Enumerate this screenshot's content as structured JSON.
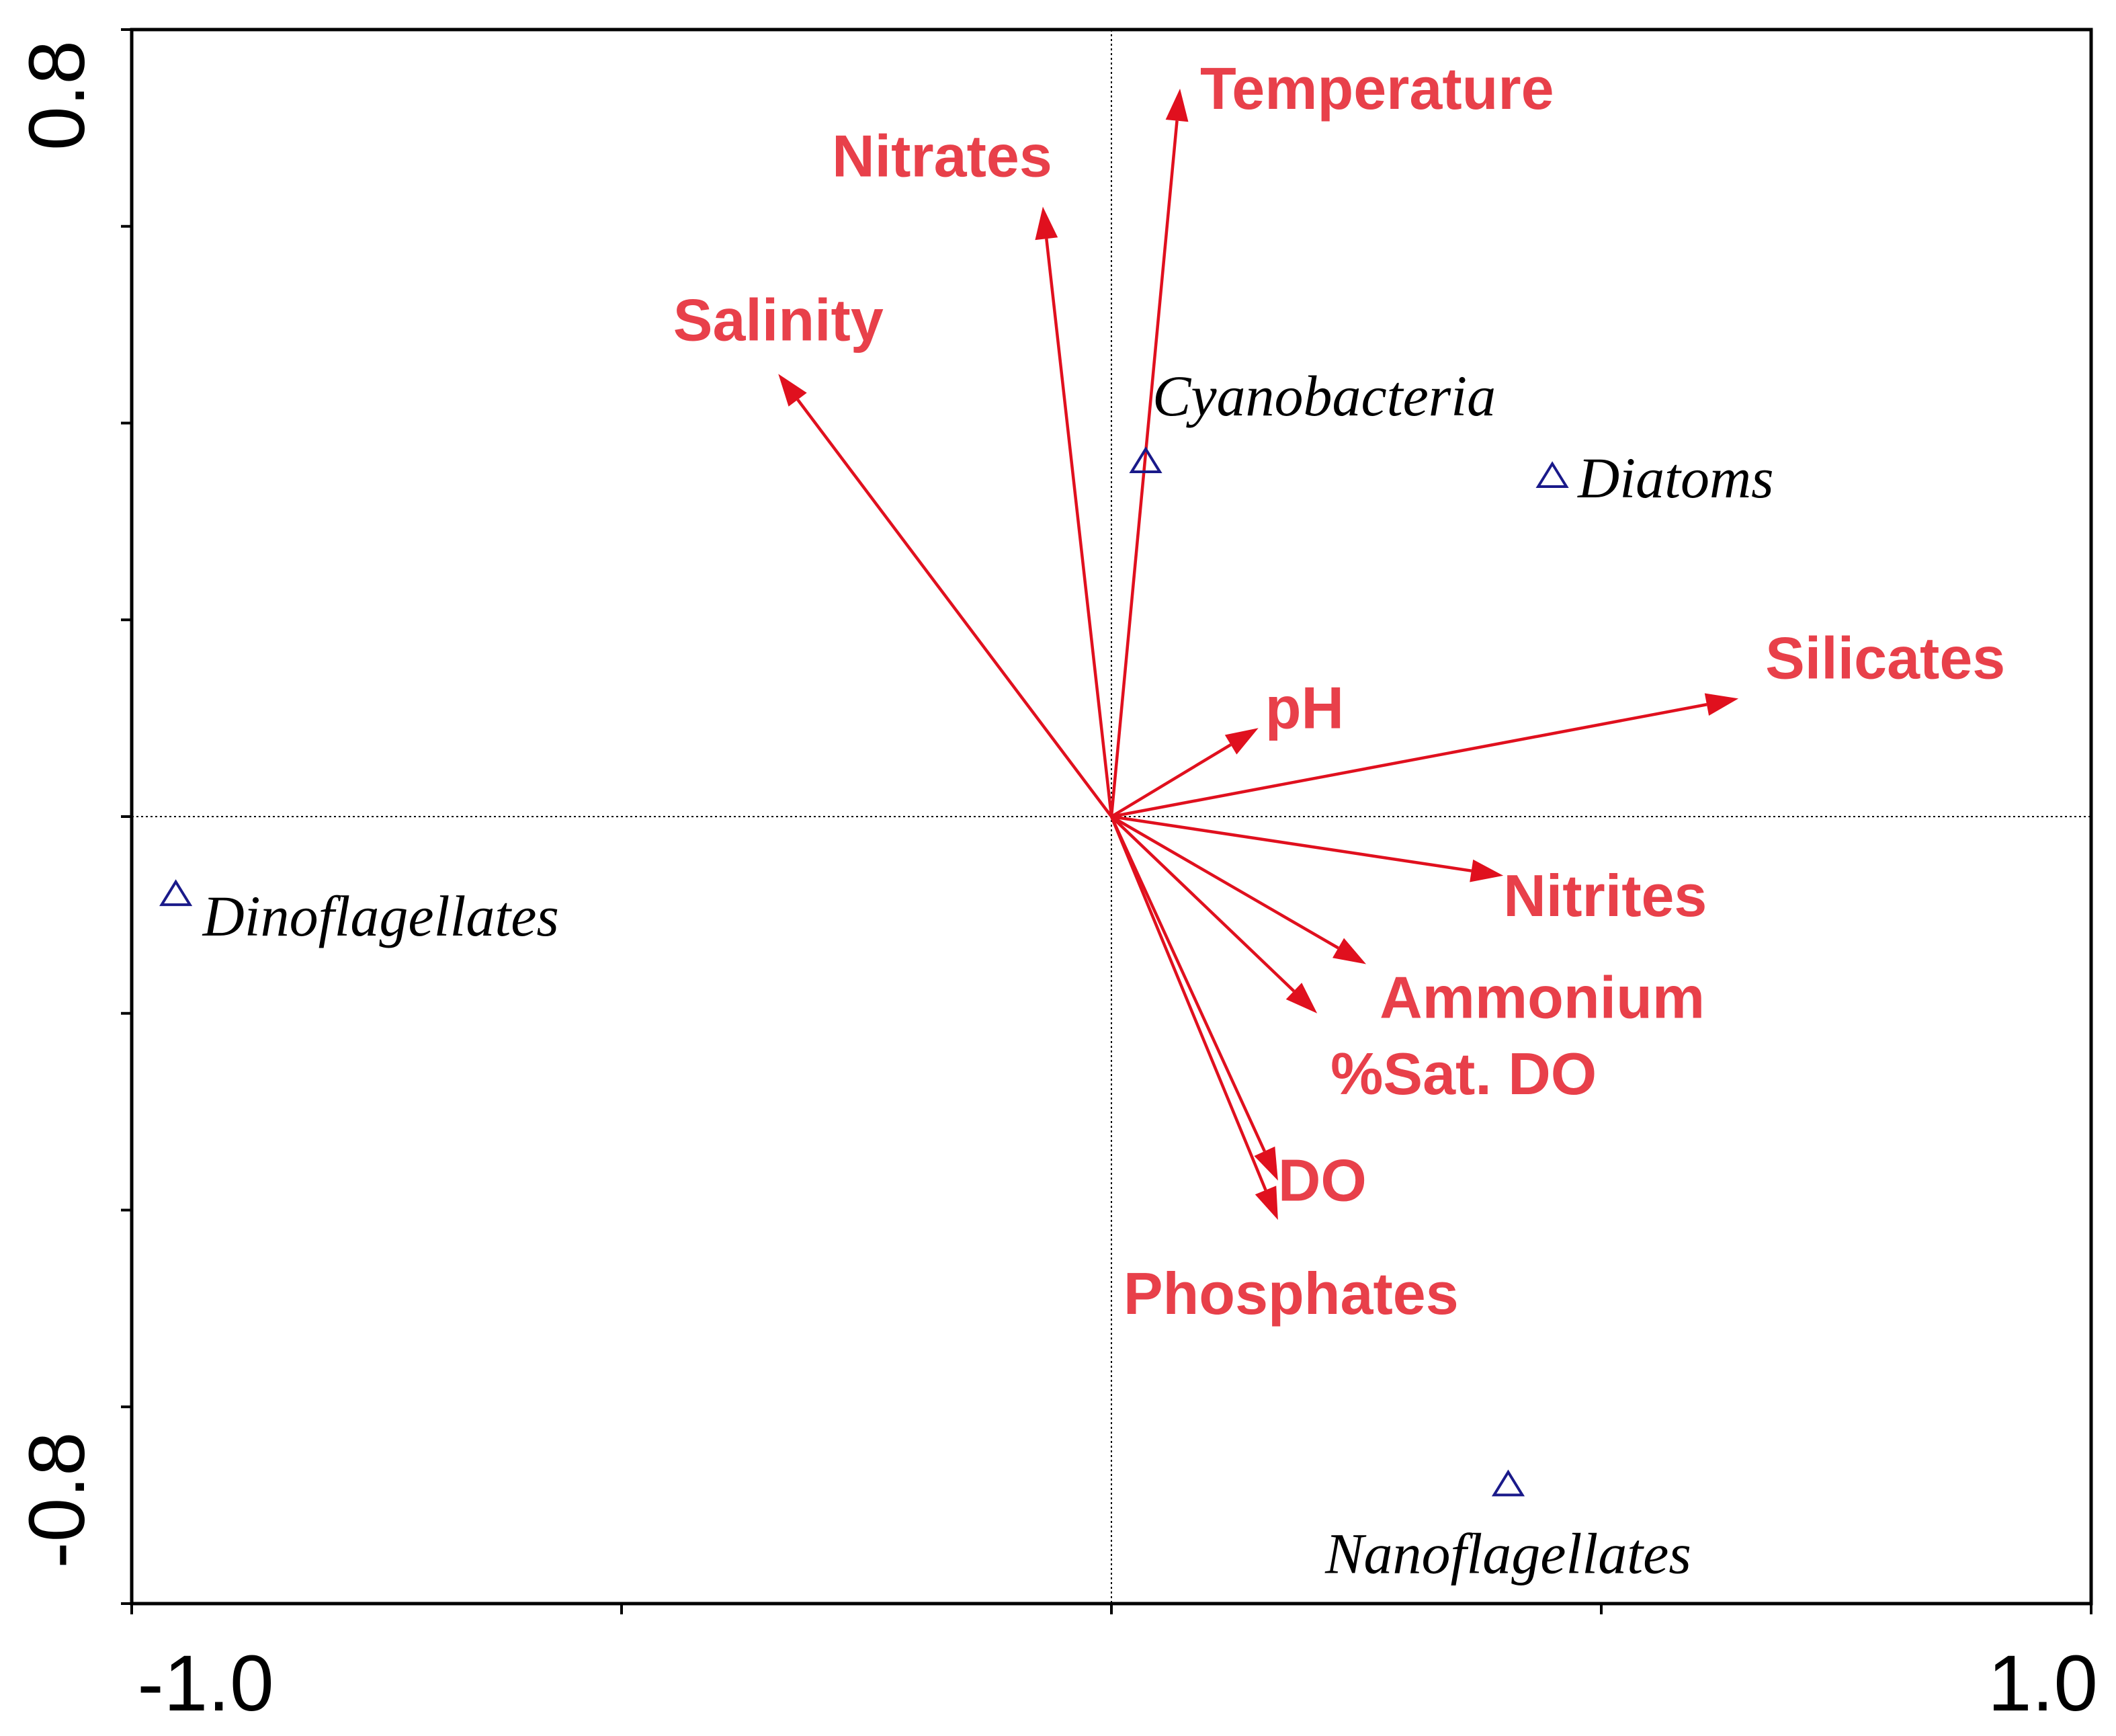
{
  "chart_data": {
    "type": "biplot",
    "title": "",
    "xlabel": "",
    "ylabel": "",
    "xlim": [
      -1.0,
      1.0
    ],
    "ylim": [
      -0.8,
      0.8
    ],
    "x_tick_labels": [
      "-1.0",
      "1.0"
    ],
    "y_tick_labels": [
      "0.8",
      "-0.8"
    ],
    "x_minor_ticks": [
      -1.0,
      -0.5,
      0.0,
      0.5,
      1.0
    ],
    "y_minor_ticks": [
      0.8,
      0.6,
      0.4,
      0.2,
      0.0,
      -0.2,
      -0.4,
      -0.6,
      -0.8
    ],
    "environmental_variables": [
      {
        "name": "Temperature",
        "x": 0.07,
        "y": 0.74
      },
      {
        "name": "Nitrates",
        "x": -0.07,
        "y": 0.62
      },
      {
        "name": "Salinity",
        "x": -0.34,
        "y": 0.45
      },
      {
        "name": "pH",
        "x": 0.15,
        "y": 0.09
      },
      {
        "name": "Silicates",
        "x": 0.64,
        "y": 0.12
      },
      {
        "name": "Nitrites",
        "x": 0.4,
        "y": -0.06
      },
      {
        "name": "Ammonium",
        "x": 0.26,
        "y": -0.15
      },
      {
        "name": "%Sat. DO",
        "x": 0.21,
        "y": -0.2
      },
      {
        "name": "DO",
        "x": 0.17,
        "y": -0.37
      },
      {
        "name": "Phosphates",
        "x": 0.17,
        "y": -0.41
      }
    ],
    "species": [
      {
        "name": "Cyanobacteria",
        "x": 0.035,
        "y": 0.36
      },
      {
        "name": "Diatoms",
        "x": 0.45,
        "y": 0.345
      },
      {
        "name": "Dinoflagellates",
        "x": -0.955,
        "y": -0.08
      },
      {
        "name": "Nanoflagellates",
        "x": 0.405,
        "y": -0.68
      }
    ]
  }
}
